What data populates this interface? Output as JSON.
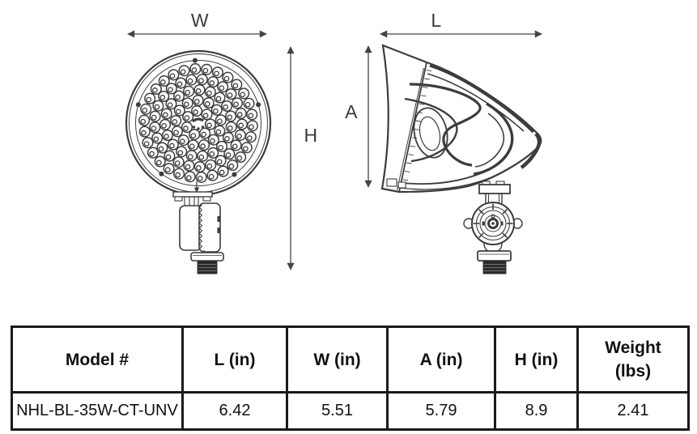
{
  "diagram": {
    "front_view": {
      "width_label": "W",
      "height_label": "H"
    },
    "side_view": {
      "length_label": "L",
      "height_label": "A"
    }
  },
  "table": {
    "headers": [
      {
        "lines": [
          "Model #"
        ]
      },
      {
        "lines": [
          "L (in)"
        ]
      },
      {
        "lines": [
          "W (in)"
        ]
      },
      {
        "lines": [
          "A (in)"
        ]
      },
      {
        "lines": [
          "H (in)"
        ]
      },
      {
        "lines": [
          "Weight",
          "(lbs)"
        ]
      }
    ],
    "row": {
      "model": "NHL-BL-35W-CT-UNV",
      "l_in": "6.42",
      "w_in": "5.51",
      "a_in": "5.79",
      "h_in": "8.9",
      "weight_lbs": "2.41"
    }
  },
  "colors": {
    "line": "#3c3c3c",
    "dim_line": "#444444",
    "label_text": "#3a3a3a",
    "table_border": "#1a1a1a",
    "table_text": "#111111",
    "background": "#ffffff"
  }
}
